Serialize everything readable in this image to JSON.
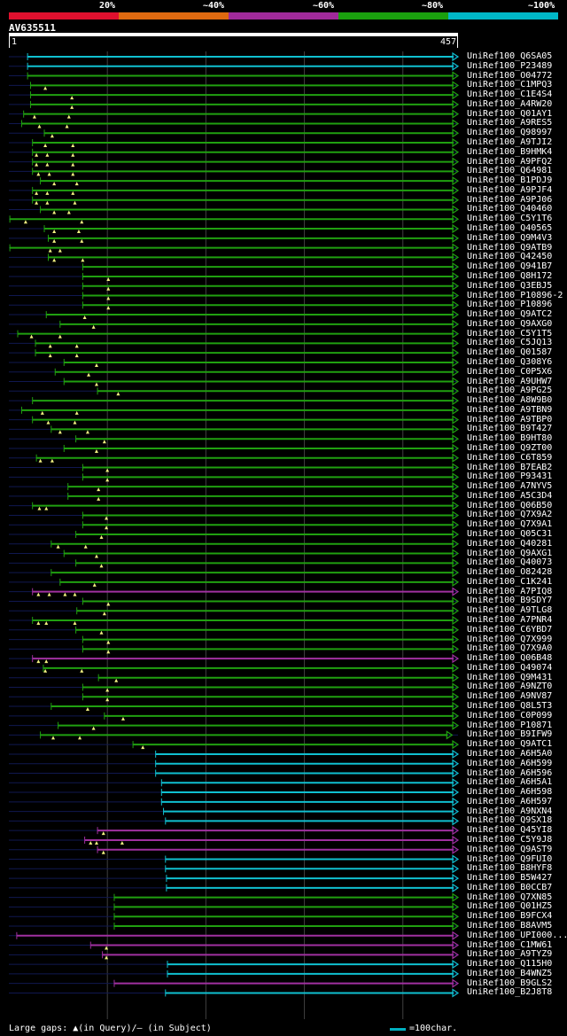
{
  "legend": {
    "segments": [
      {
        "label": "20%",
        "color": "#e0102e"
      },
      {
        "label": "~40%",
        "color": "#e06a10"
      },
      {
        "label": "~60%",
        "color": "#a02a9a"
      },
      {
        "label": "~80%",
        "color": "#1aa00e"
      },
      {
        "label": "~100%",
        "color": "#00b8c8"
      }
    ]
  },
  "query": {
    "title": "AV635511",
    "start": "1",
    "end": "457",
    "length": 457
  },
  "colors": {
    "cyan": "#10c0d0",
    "green": "#20a010",
    "purple": "#a030a0",
    "track": "#101850",
    "grid": "#404040",
    "marker": "#f0f080"
  },
  "chart_data": {
    "type": "alignment",
    "x_range": [
      1,
      457
    ],
    "hits": [
      {
        "name": "UniRef100_Q6SA05",
        "color": "cyan",
        "start": 20,
        "end": 457,
        "markers": []
      },
      {
        "name": "UniRef100_P23489",
        "color": "cyan",
        "start": 20,
        "end": 457,
        "markers": []
      },
      {
        "name": "UniRef100_O04772",
        "color": "green",
        "start": 20,
        "end": 457,
        "markers": []
      },
      {
        "name": "UniRef100_C1MPQ3",
        "color": "green",
        "start": 23,
        "end": 457,
        "markers": [
          38
        ]
      },
      {
        "name": "UniRef100_C1E4S4",
        "color": "green",
        "start": 23,
        "end": 457,
        "markers": [
          65
        ]
      },
      {
        "name": "UniRef100_A4RW20",
        "color": "green",
        "start": 23,
        "end": 457,
        "markers": [
          65
        ]
      },
      {
        "name": "UniRef100_Q01AY1",
        "color": "green",
        "start": 16,
        "end": 457,
        "markers": [
          27,
          62
        ]
      },
      {
        "name": "UniRef100_A9RES5",
        "color": "green",
        "start": 14,
        "end": 457,
        "markers": [
          32,
          60
        ]
      },
      {
        "name": "UniRef100_Q98997",
        "color": "green",
        "start": 37,
        "end": 457,
        "markers": [
          45
        ]
      },
      {
        "name": "UniRef100_A9TJI2",
        "color": "green",
        "start": 25,
        "end": 457,
        "markers": [
          38,
          66
        ]
      },
      {
        "name": "UniRef100_B9HMK4",
        "color": "green",
        "start": 25,
        "end": 457,
        "markers": [
          29,
          40,
          66
        ]
      },
      {
        "name": "UniRef100_A9PFQ2",
        "color": "green",
        "start": 25,
        "end": 457,
        "markers": [
          29,
          40,
          66
        ]
      },
      {
        "name": "UniRef100_Q64981",
        "color": "green",
        "start": 25,
        "end": 457,
        "markers": [
          31,
          42,
          66
        ]
      },
      {
        "name": "UniRef100_B1PDJ9",
        "color": "green",
        "start": 33,
        "end": 457,
        "markers": [
          47,
          70
        ]
      },
      {
        "name": "UniRef100_A9PJF4",
        "color": "green",
        "start": 25,
        "end": 457,
        "markers": [
          29,
          40,
          66
        ]
      },
      {
        "name": "UniRef100_A9PJ06",
        "color": "green",
        "start": 25,
        "end": 457,
        "markers": [
          29,
          40,
          68
        ]
      },
      {
        "name": "UniRef100_Q40460",
        "color": "green",
        "start": 33,
        "end": 457,
        "markers": [
          47,
          62
        ]
      },
      {
        "name": "UniRef100_C5Y1T6",
        "color": "green",
        "start": 2,
        "end": 457,
        "markers": [
          18,
          75
        ]
      },
      {
        "name": "UniRef100_Q40565",
        "color": "green",
        "start": 37,
        "end": 457,
        "markers": [
          47,
          72
        ]
      },
      {
        "name": "UniRef100_Q9M4V3",
        "color": "green",
        "start": 41,
        "end": 457,
        "markers": [
          47,
          75
        ]
      },
      {
        "name": "UniRef100_Q9ATB9",
        "color": "green",
        "start": 2,
        "end": 457,
        "markers": [
          43,
          53
        ]
      },
      {
        "name": "UniRef100_Q42450",
        "color": "green",
        "start": 41,
        "end": 457,
        "markers": [
          47,
          76
        ]
      },
      {
        "name": "UniRef100_Q941B7",
        "color": "green",
        "start": 76,
        "end": 457,
        "markers": []
      },
      {
        "name": "UniRef100_Q8H172",
        "color": "green",
        "start": 76,
        "end": 457,
        "markers": [
          102
        ]
      },
      {
        "name": "UniRef100_Q3EBJ5",
        "color": "green",
        "start": 76,
        "end": 457,
        "markers": [
          102
        ]
      },
      {
        "name": "UniRef100_P10896-2",
        "color": "green",
        "start": 76,
        "end": 457,
        "markers": [
          102
        ]
      },
      {
        "name": "UniRef100_P10896",
        "color": "green",
        "start": 76,
        "end": 457,
        "markers": [
          102
        ]
      },
      {
        "name": "UniRef100_Q9ATC2",
        "color": "green",
        "start": 39,
        "end": 457,
        "markers": [
          78
        ]
      },
      {
        "name": "UniRef100_Q9AXG0",
        "color": "green",
        "start": 53,
        "end": 457,
        "markers": [
          87
        ]
      },
      {
        "name": "UniRef100_C5Y1T5",
        "color": "green",
        "start": 10,
        "end": 457,
        "markers": [
          24,
          53
        ]
      },
      {
        "name": "UniRef100_C5JQ13",
        "color": "green",
        "start": 28,
        "end": 457,
        "markers": [
          43,
          70
        ]
      },
      {
        "name": "UniRef100_Q01587",
        "color": "green",
        "start": 28,
        "end": 457,
        "markers": [
          43,
          70
        ]
      },
      {
        "name": "UniRef100_Q308Y6",
        "color": "green",
        "start": 57,
        "end": 457,
        "markers": [
          90
        ]
      },
      {
        "name": "UniRef100_C0P5X6",
        "color": "green",
        "start": 48,
        "end": 457,
        "markers": [
          82
        ]
      },
      {
        "name": "UniRef100_A9UHW7",
        "color": "green",
        "start": 57,
        "end": 457,
        "markers": [
          90
        ]
      },
      {
        "name": "UniRef100_A9PG25",
        "color": "green",
        "start": 91,
        "end": 457,
        "markers": [
          112
        ]
      },
      {
        "name": "UniRef100_A8W9B0",
        "color": "green",
        "start": 25,
        "end": 457,
        "markers": []
      },
      {
        "name": "UniRef100_A9TBN9",
        "color": "green",
        "start": 14,
        "end": 457,
        "markers": [
          35,
          70
        ]
      },
      {
        "name": "UniRef100_A9TBP0",
        "color": "green",
        "start": 25,
        "end": 457,
        "markers": [
          41,
          68
        ]
      },
      {
        "name": "UniRef100_B9T427",
        "color": "green",
        "start": 44,
        "end": 457,
        "markers": [
          53,
          81
        ]
      },
      {
        "name": "UniRef100_B9HT80",
        "color": "green",
        "start": 69,
        "end": 457,
        "markers": [
          98
        ]
      },
      {
        "name": "UniRef100_Q9ZT00",
        "color": "green",
        "start": 57,
        "end": 457,
        "markers": [
          90
        ]
      },
      {
        "name": "UniRef100_C6T859",
        "color": "green",
        "start": 29,
        "end": 457,
        "markers": [
          33,
          45
        ]
      },
      {
        "name": "UniRef100_B7EAB2",
        "color": "green",
        "start": 76,
        "end": 457,
        "markers": [
          101
        ]
      },
      {
        "name": "UniRef100_P93431",
        "color": "green",
        "start": 76,
        "end": 457,
        "markers": [
          101
        ]
      },
      {
        "name": "UniRef100_A7NYV5",
        "color": "green",
        "start": 61,
        "end": 457,
        "markers": [
          92
        ]
      },
      {
        "name": "UniRef100_A5C3D4",
        "color": "green",
        "start": 61,
        "end": 457,
        "markers": [
          92
        ]
      },
      {
        "name": "UniRef100_Q06B50",
        "color": "green",
        "start": 25,
        "end": 457,
        "markers": [
          32,
          39
        ]
      },
      {
        "name": "UniRef100_Q7X9A2",
        "color": "green",
        "start": 76,
        "end": 457,
        "markers": [
          100
        ]
      },
      {
        "name": "UniRef100_Q7X9A1",
        "color": "green",
        "start": 76,
        "end": 457,
        "markers": [
          100
        ]
      },
      {
        "name": "UniRef100_Q05C31",
        "color": "green",
        "start": 69,
        "end": 457,
        "markers": [
          95
        ]
      },
      {
        "name": "UniRef100_Q40281",
        "color": "green",
        "start": 44,
        "end": 457,
        "markers": [
          51,
          79
        ]
      },
      {
        "name": "UniRef100_Q9AXG1",
        "color": "green",
        "start": 57,
        "end": 457,
        "markers": [
          90
        ]
      },
      {
        "name": "UniRef100_Q40073",
        "color": "green",
        "start": 69,
        "end": 457,
        "markers": [
          95
        ]
      },
      {
        "name": "UniRef100_O82428",
        "color": "green",
        "start": 44,
        "end": 457,
        "markers": []
      },
      {
        "name": "UniRef100_C1K241",
        "color": "green",
        "start": 53,
        "end": 457,
        "markers": [
          88
        ]
      },
      {
        "name": "UniRef100_A7PIQ8",
        "color": "purple",
        "start": 25,
        "end": 457,
        "markers": [
          31,
          42,
          58,
          68
        ]
      },
      {
        "name": "UniRef100_B9SDY7",
        "color": "green",
        "start": 76,
        "end": 457,
        "markers": [
          102
        ]
      },
      {
        "name": "UniRef100_A9TLG8",
        "color": "green",
        "start": 70,
        "end": 457,
        "markers": [
          98
        ]
      },
      {
        "name": "UniRef100_A7PNR4",
        "color": "green",
        "start": 25,
        "end": 457,
        "markers": [
          31,
          39,
          68
        ]
      },
      {
        "name": "UniRef100_C6YBD7",
        "color": "green",
        "start": 69,
        "end": 457,
        "markers": [
          95
        ]
      },
      {
        "name": "UniRef100_Q7X999",
        "color": "green",
        "start": 76,
        "end": 457,
        "markers": [
          102
        ]
      },
      {
        "name": "UniRef100_Q7X9A0",
        "color": "green",
        "start": 76,
        "end": 457,
        "markers": [
          102
        ]
      },
      {
        "name": "UniRef100_Q06B48",
        "color": "purple",
        "start": 25,
        "end": 457,
        "markers": [
          31,
          39
        ]
      },
      {
        "name": "UniRef100_Q49074",
        "color": "green",
        "start": 36,
        "end": 457,
        "markers": [
          38,
          75
        ]
      },
      {
        "name": "UniRef100_Q9M431",
        "color": "green",
        "start": 92,
        "end": 457,
        "markers": [
          110
        ]
      },
      {
        "name": "UniRef100_A9NZT0",
        "color": "green",
        "start": 76,
        "end": 457,
        "markers": [
          101
        ]
      },
      {
        "name": "UniRef100_A9NV87",
        "color": "green",
        "start": 76,
        "end": 457,
        "markers": [
          101
        ]
      },
      {
        "name": "UniRef100_Q8L5T3",
        "color": "green",
        "start": 44,
        "end": 457,
        "markers": [
          81
        ]
      },
      {
        "name": "UniRef100_C0P099",
        "color": "green",
        "start": 98,
        "end": 457,
        "markers": [
          117
        ]
      },
      {
        "name": "UniRef100_P10871",
        "color": "green",
        "start": 51,
        "end": 457,
        "markers": [
          87
        ]
      },
      {
        "name": "UniRef100_B9IFW9",
        "color": "green",
        "start": 33,
        "end": 451,
        "markers": [
          46,
          73
        ]
      },
      {
        "name": "UniRef100_Q9ATC1",
        "color": "green",
        "start": 127,
        "end": 457,
        "markers": [
          137
        ]
      },
      {
        "name": "UniRef100_A6H5A0",
        "color": "cyan",
        "start": 150,
        "end": 457,
        "markers": []
      },
      {
        "name": "UniRef100_A6H599",
        "color": "cyan",
        "start": 150,
        "end": 457,
        "markers": []
      },
      {
        "name": "UniRef100_A6H596",
        "color": "cyan",
        "start": 150,
        "end": 457,
        "markers": []
      },
      {
        "name": "UniRef100_A6H5A1",
        "color": "cyan",
        "start": 156,
        "end": 457,
        "markers": []
      },
      {
        "name": "UniRef100_A6H598",
        "color": "cyan",
        "start": 156,
        "end": 457,
        "markers": []
      },
      {
        "name": "UniRef100_A6H597",
        "color": "cyan",
        "start": 156,
        "end": 457,
        "markers": []
      },
      {
        "name": "UniRef100_A9NXN4",
        "color": "cyan",
        "start": 158,
        "end": 457,
        "markers": []
      },
      {
        "name": "UniRef100_Q9SX18",
        "color": "cyan",
        "start": 160,
        "end": 457,
        "markers": []
      },
      {
        "name": "UniRef100_Q45YI8",
        "color": "purple",
        "start": 91,
        "end": 457,
        "markers": [
          97
        ]
      },
      {
        "name": "UniRef100_C5Y9J8",
        "color": "purple",
        "start": 78,
        "end": 457,
        "markers": [
          84,
          90,
          116
        ]
      },
      {
        "name": "UniRef100_Q9AST9",
        "color": "purple",
        "start": 91,
        "end": 457,
        "markers": [
          97
        ]
      },
      {
        "name": "UniRef100_Q9FUI0",
        "color": "cyan",
        "start": 160,
        "end": 457,
        "markers": []
      },
      {
        "name": "UniRef100_B8HYF8",
        "color": "cyan",
        "start": 160,
        "end": 457,
        "markers": []
      },
      {
        "name": "UniRef100_B5W427",
        "color": "cyan",
        "start": 161,
        "end": 457,
        "markers": []
      },
      {
        "name": "UniRef100_B0CCB7",
        "color": "cyan",
        "start": 161,
        "end": 457,
        "markers": []
      },
      {
        "name": "UniRef100_Q7XN85",
        "color": "green",
        "start": 108,
        "end": 457,
        "markers": []
      },
      {
        "name": "UniRef100_Q01HZ5",
        "color": "green",
        "start": 108,
        "end": 457,
        "markers": []
      },
      {
        "name": "UniRef100_B9FCX4",
        "color": "green",
        "start": 108,
        "end": 457,
        "markers": []
      },
      {
        "name": "UniRef100_B8AVM5",
        "color": "green",
        "start": 108,
        "end": 457,
        "markers": []
      },
      {
        "name": "UniRef100_UPI000...",
        "color": "purple",
        "start": 9,
        "end": 457,
        "markers": []
      },
      {
        "name": "UniRef100_C1MW61",
        "color": "purple",
        "start": 84,
        "end": 457,
        "markers": [
          100
        ]
      },
      {
        "name": "UniRef100_A9TYZ9",
        "color": "purple",
        "start": 96,
        "end": 457,
        "markers": [
          100
        ]
      },
      {
        "name": "UniRef100_Q115H0",
        "color": "cyan",
        "start": 162,
        "end": 457,
        "markers": []
      },
      {
        "name": "UniRef100_B4WNZ5",
        "color": "cyan",
        "start": 162,
        "end": 457,
        "markers": []
      },
      {
        "name": "UniRef100_B9GLS2",
        "color": "purple",
        "start": 108,
        "end": 457,
        "markers": []
      },
      {
        "name": "UniRef100_B2J8T8",
        "color": "cyan",
        "start": 160,
        "end": 457,
        "markers": []
      }
    ]
  },
  "footer": {
    "gaps_text": "Large gaps: ▲(in Query)/– (in Subject)",
    "key_text": "=100char."
  }
}
